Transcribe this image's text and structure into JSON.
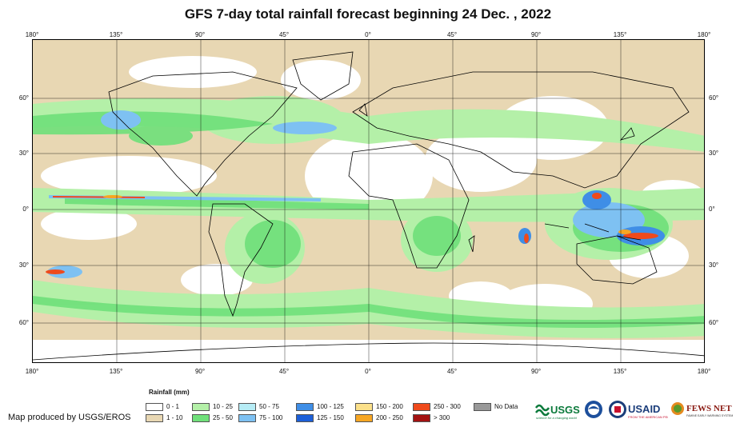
{
  "title": "GFS 7-day total rainfall forecast beginning 24 Dec. , 2022",
  "longitude_labels": [
    "180°",
    "135°",
    "90°",
    "45°",
    "0°",
    "45°",
    "90°",
    "135°",
    "180°"
  ],
  "latitude_labels": [
    "60°",
    "30°",
    "0°",
    "30°",
    "60°"
  ],
  "legend": {
    "title": "Rainfall (mm)",
    "items": [
      {
        "label": "0 - 1",
        "color": "#ffffff"
      },
      {
        "label": "1 - 10",
        "color": "#e8d7b3"
      },
      {
        "label": "10 - 25",
        "color": "#b4f0a8"
      },
      {
        "label": "25 - 50",
        "color": "#6fe07a"
      },
      {
        "label": "50 - 75",
        "color": "#b6ecf5"
      },
      {
        "label": "75 - 100",
        "color": "#7ec1f2"
      },
      {
        "label": "100 - 125",
        "color": "#3f8ee6"
      },
      {
        "label": "125 - 150",
        "color": "#1c5fd8"
      },
      {
        "label": "150 - 200",
        "color": "#fbe08a"
      },
      {
        "label": "200 - 250",
        "color": "#f6a623"
      },
      {
        "label": "250 - 300",
        "color": "#ef4a1c"
      },
      {
        "label": "> 300",
        "color": "#a31212"
      },
      {
        "label": "No Data",
        "color": "#999999"
      }
    ]
  },
  "credit": "Map produced by USGS/EROS",
  "logos": {
    "usgs": {
      "text": "USGS",
      "tagline": "science for a changing world"
    },
    "usaid": {
      "text": "USAID",
      "tagline": "FROM THE AMERICAN PEOPLE"
    },
    "fews": {
      "text": "FEWS NET",
      "tagline": "FAMINE EARLY WARNING SYSTEMS NETWORK"
    }
  }
}
